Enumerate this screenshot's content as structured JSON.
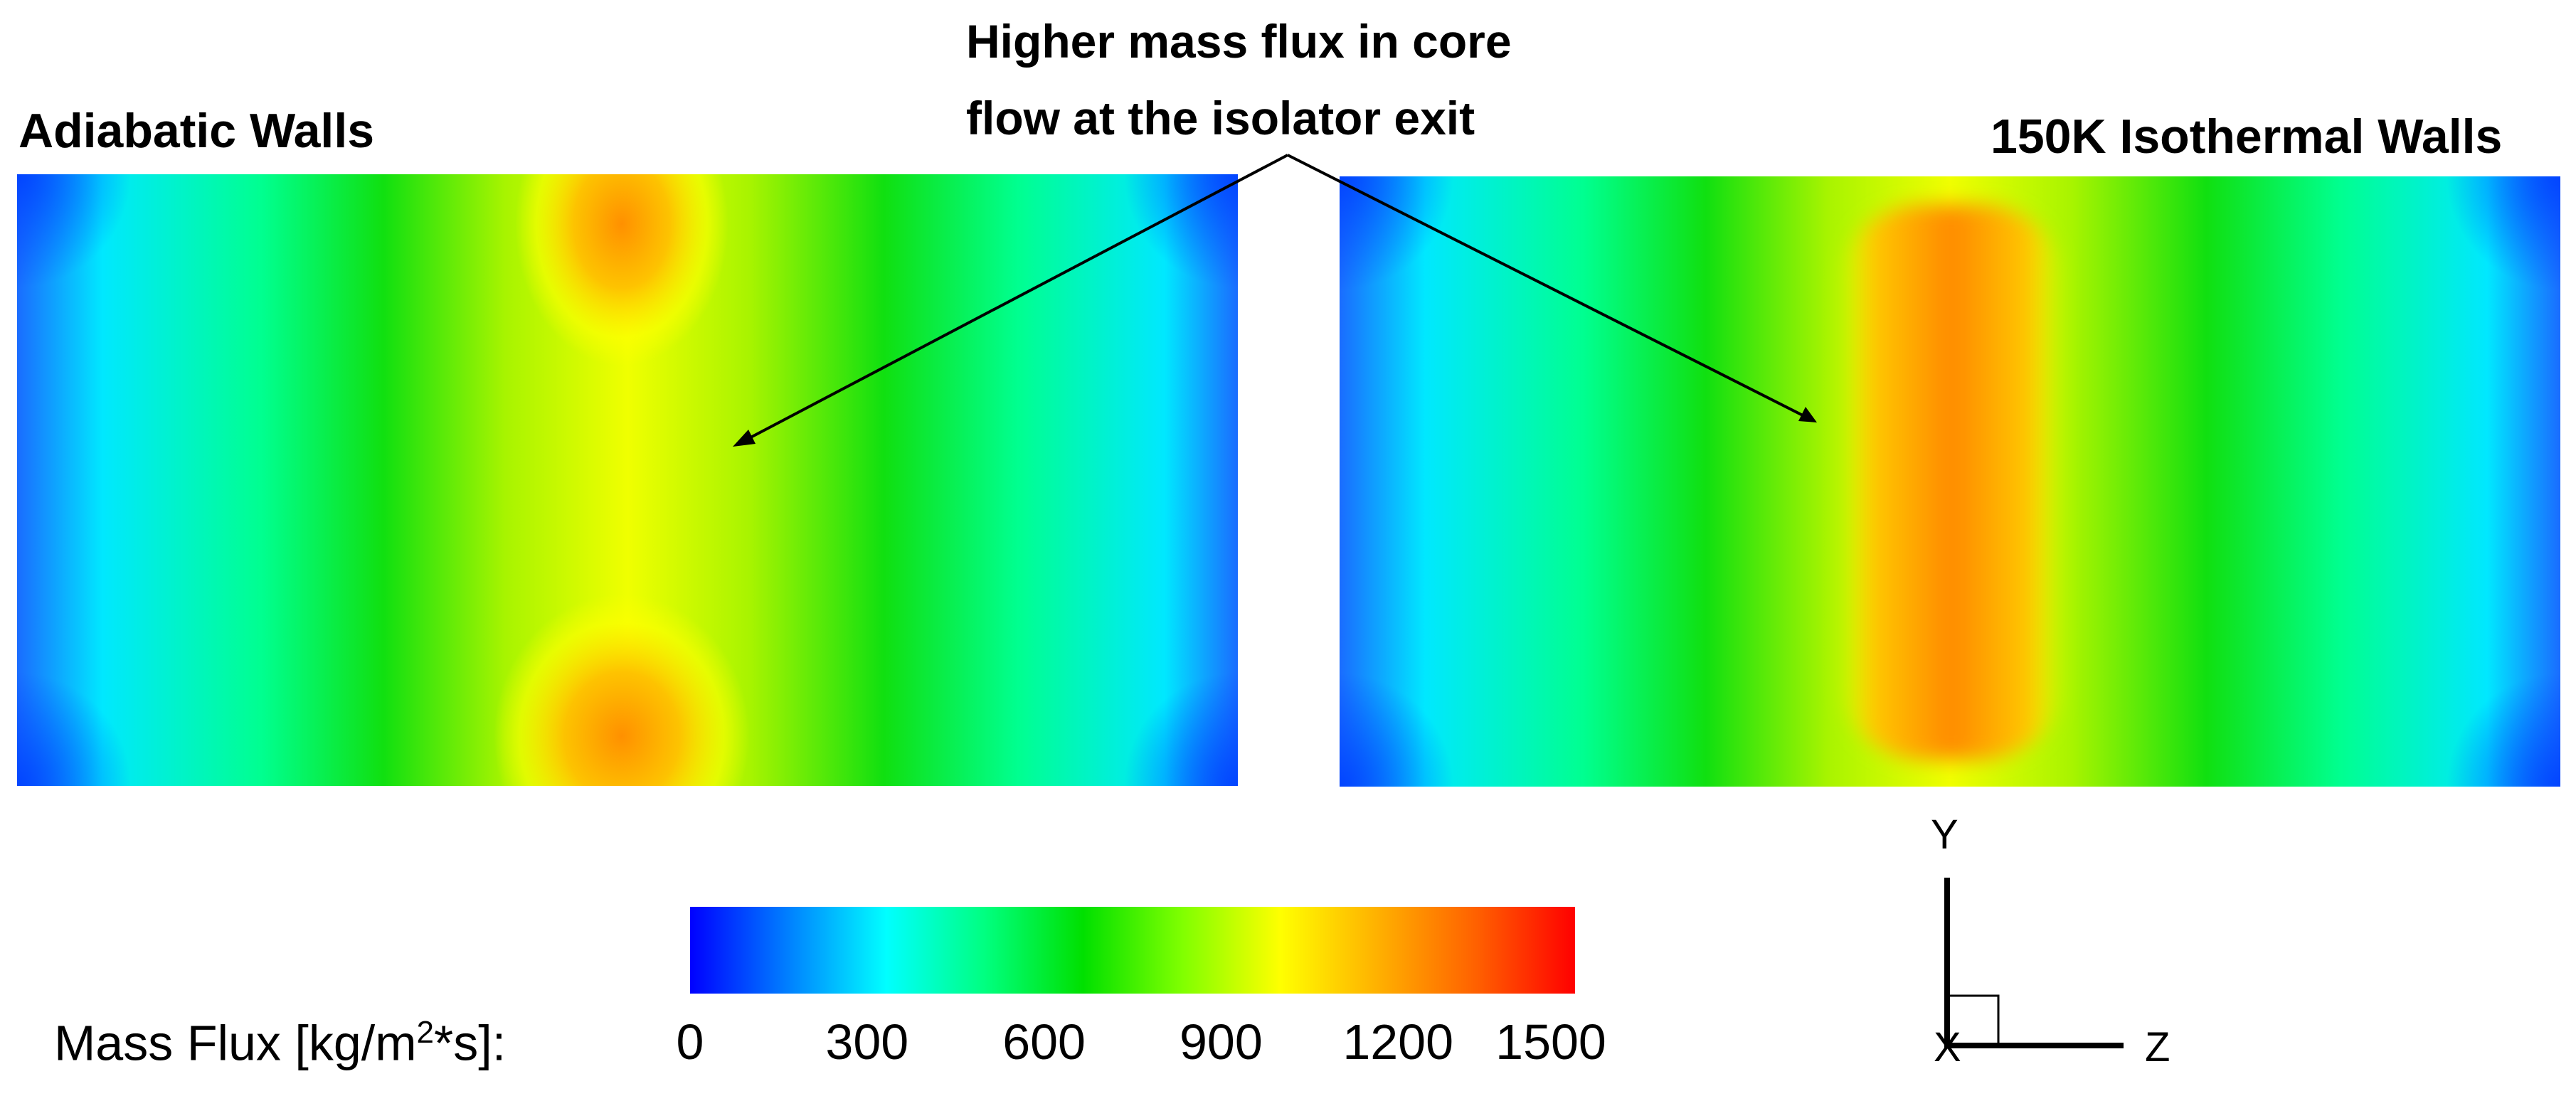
{
  "panels": {
    "left_title": "Adiabatic Walls",
    "right_title": "150K Isothermal Walls"
  },
  "annotation": {
    "line1": "Higher mass flux in core",
    "line2": "flow at the isolator exit"
  },
  "colorbar": {
    "label_prefix": "Mass Flux [kg/m",
    "label_sup": "2",
    "label_suffix": "*s]:",
    "min": 0,
    "max": 1500,
    "ticks": [
      "0",
      "300",
      "600",
      "900",
      "1200",
      "1500"
    ],
    "colors": [
      "#0000ff",
      "#0080ff",
      "#00ffff",
      "#00ff80",
      "#00e000",
      "#80ff00",
      "#ffff00",
      "#ffb000",
      "#ff6000",
      "#ff0000"
    ]
  },
  "axes_triad": {
    "y_label": "Y",
    "z_label": "Z",
    "x_label": "X"
  },
  "chart_data": {
    "type": "heatmap",
    "variable": "Mass Flux [kg/m^2*s]",
    "range": [
      0,
      1500
    ],
    "panels": [
      {
        "name": "Adiabatic Walls",
        "center_value": 1050,
        "peak_value": 1300,
        "wall_value": 150,
        "peaks": [
          "top-center",
          "bottom-center"
        ]
      },
      {
        "name": "150K Isothermal Walls",
        "center_value": 1300,
        "peak_value": 1330,
        "wall_value": 150,
        "peaks": [
          "center-band"
        ]
      }
    ]
  }
}
